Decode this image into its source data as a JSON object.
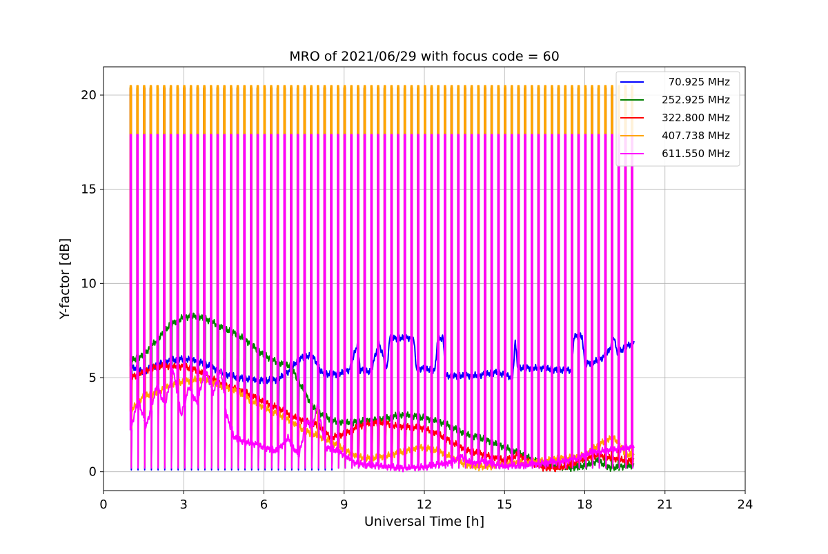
{
  "chart_data": {
    "type": "line",
    "title": "MRO of 2021/06/29 with focus code = 60",
    "xlabel": "Universal Time [h]",
    "ylabel": "Y-factor [dB]",
    "xlim": [
      0,
      24
    ],
    "ylim": [
      -1.0,
      21.5
    ],
    "xticks": [
      0,
      3,
      6,
      9,
      12,
      15,
      18,
      21,
      24
    ],
    "yticks": [
      0,
      5,
      10,
      15,
      20
    ],
    "grid": true,
    "legend_position": "top-right",
    "pulse_times": [
      1.0,
      1.25,
      1.5,
      1.75,
      2.0,
      2.25,
      2.5,
      2.75,
      3.0,
      3.25,
      3.5,
      3.75,
      4.0,
      4.25,
      4.5,
      4.75,
      5.0,
      5.25,
      5.5,
      5.75,
      6.0,
      6.25,
      6.5,
      6.75,
      7.0,
      7.25,
      7.5,
      7.75,
      8.0,
      8.25,
      8.5,
      8.75,
      9.0,
      9.25,
      9.5,
      9.75,
      10.0,
      10.25,
      10.5,
      10.75,
      11.0,
      11.25,
      11.5,
      11.75,
      12.0,
      12.25,
      12.5,
      12.75,
      13.0,
      13.25,
      13.5,
      13.75,
      14.0,
      14.25,
      14.5,
      14.75,
      15.0,
      15.25,
      15.5,
      15.75,
      16.0,
      16.25,
      16.5,
      16.75,
      17.0,
      17.25,
      17.5,
      17.75,
      18.0,
      18.25,
      18.5,
      18.75,
      19.0,
      19.25,
      19.5,
      19.75
    ],
    "series": [
      {
        "name": "70.925 MHz",
        "color": "#0000ff",
        "pulse_peak": 6.0,
        "pulse_base": 0.1,
        "pulse_until": 8.6,
        "baseline": [
          [
            1.0,
            5.6
          ],
          [
            1.5,
            5.3
          ],
          [
            2.0,
            5.7
          ],
          [
            2.5,
            5.9
          ],
          [
            3.0,
            6.0
          ],
          [
            3.5,
            5.9
          ],
          [
            4.0,
            5.6
          ],
          [
            4.5,
            5.2
          ],
          [
            5.0,
            5.0
          ],
          [
            5.5,
            4.9
          ],
          [
            6.0,
            4.85
          ],
          [
            6.5,
            4.9
          ],
          [
            7.0,
            5.4
          ],
          [
            7.3,
            6.0
          ],
          [
            7.8,
            6.2
          ],
          [
            8.2,
            5.2
          ],
          [
            8.8,
            5.2
          ],
          [
            9.2,
            5.4
          ],
          [
            9.5,
            6.8
          ],
          [
            9.6,
            5.4
          ],
          [
            10.0,
            5.3
          ],
          [
            10.3,
            6.9
          ],
          [
            10.6,
            5.4
          ],
          [
            10.7,
            7.1
          ],
          [
            11.6,
            7.1
          ],
          [
            11.7,
            5.5
          ],
          [
            12.4,
            5.4
          ],
          [
            12.5,
            7.1
          ],
          [
            12.7,
            7.1
          ],
          [
            12.8,
            5.1
          ],
          [
            14.0,
            5.1
          ],
          [
            14.7,
            5.3
          ],
          [
            15.3,
            5.0
          ],
          [
            15.4,
            6.9
          ],
          [
            15.5,
            5.5
          ],
          [
            16.0,
            5.5
          ],
          [
            16.5,
            5.5
          ],
          [
            17.0,
            5.4
          ],
          [
            17.5,
            5.4
          ],
          [
            17.6,
            7.2
          ],
          [
            17.9,
            7.2
          ],
          [
            18.0,
            5.7
          ],
          [
            18.5,
            5.9
          ],
          [
            18.7,
            6.1
          ],
          [
            18.9,
            6.4
          ],
          [
            19.1,
            7.2
          ],
          [
            19.2,
            6.3
          ],
          [
            19.5,
            6.6
          ],
          [
            19.85,
            6.9
          ]
        ]
      },
      {
        "name": "252.925 MHz",
        "color": "#008000",
        "pulse_peak": 20.4,
        "pulse_base": 0.2,
        "pulse_until": 19.85,
        "baseline": [
          [
            1.0,
            5.9
          ],
          [
            1.5,
            6.2
          ],
          [
            2.0,
            7.0
          ],
          [
            2.5,
            7.8
          ],
          [
            3.0,
            8.2
          ],
          [
            3.5,
            8.3
          ],
          [
            4.0,
            8.0
          ],
          [
            4.5,
            7.6
          ],
          [
            5.0,
            7.3
          ],
          [
            5.5,
            6.8
          ],
          [
            6.0,
            6.2
          ],
          [
            6.5,
            5.8
          ],
          [
            7.0,
            5.6
          ],
          [
            7.3,
            4.8
          ],
          [
            7.8,
            3.5
          ],
          [
            8.2,
            3.0
          ],
          [
            8.6,
            2.7
          ],
          [
            9.0,
            2.6
          ],
          [
            9.5,
            2.65
          ],
          [
            10.0,
            2.75
          ],
          [
            10.5,
            2.8
          ],
          [
            11.0,
            3.0
          ],
          [
            11.5,
            3.0
          ],
          [
            12.0,
            2.85
          ],
          [
            12.5,
            2.7
          ],
          [
            13.0,
            2.4
          ],
          [
            13.5,
            2.0
          ],
          [
            14.0,
            1.85
          ],
          [
            14.5,
            1.6
          ],
          [
            15.0,
            1.3
          ],
          [
            15.5,
            1.0
          ],
          [
            16.0,
            0.7
          ],
          [
            16.5,
            0.4
          ],
          [
            17.0,
            0.3
          ],
          [
            17.5,
            0.2
          ],
          [
            18.0,
            0.3
          ],
          [
            18.5,
            0.6
          ],
          [
            18.8,
            0.3
          ],
          [
            19.0,
            0.2
          ],
          [
            19.5,
            0.3
          ],
          [
            19.85,
            0.35
          ]
        ]
      },
      {
        "name": "322.800 MHz",
        "color": "#ff0000",
        "pulse_peak": 20.35,
        "pulse_base": 0.3,
        "pulse_until": 19.85,
        "baseline": [
          [
            1.0,
            5.0
          ],
          [
            1.5,
            5.3
          ],
          [
            2.0,
            5.6
          ],
          [
            2.5,
            5.6
          ],
          [
            3.0,
            5.6
          ],
          [
            3.5,
            5.4
          ],
          [
            4.0,
            5.0
          ],
          [
            4.5,
            4.6
          ],
          [
            5.0,
            4.4
          ],
          [
            5.5,
            4.1
          ],
          [
            6.0,
            3.7
          ],
          [
            6.5,
            3.4
          ],
          [
            7.0,
            3.0
          ],
          [
            7.5,
            2.7
          ],
          [
            8.0,
            2.5
          ],
          [
            8.5,
            1.8
          ],
          [
            9.0,
            2.0
          ],
          [
            9.5,
            2.4
          ],
          [
            10.0,
            2.6
          ],
          [
            10.5,
            2.6
          ],
          [
            11.0,
            2.4
          ],
          [
            11.5,
            2.4
          ],
          [
            12.0,
            2.3
          ],
          [
            12.5,
            2.0
          ],
          [
            13.0,
            1.6
          ],
          [
            13.5,
            1.2
          ],
          [
            14.0,
            1.0
          ],
          [
            14.5,
            0.8
          ],
          [
            15.0,
            0.6
          ],
          [
            15.5,
            0.9
          ],
          [
            16.0,
            0.5
          ],
          [
            16.5,
            0.2
          ],
          [
            17.0,
            0.15
          ],
          [
            17.5,
            0.4
          ],
          [
            18.0,
            0.7
          ],
          [
            18.5,
            0.9
          ],
          [
            19.0,
            0.7
          ],
          [
            19.5,
            0.6
          ],
          [
            19.85,
            0.55
          ]
        ]
      },
      {
        "name": "407.738 MHz",
        "color": "#ffa500",
        "pulse_peak": 20.5,
        "pulse_base": 0.3,
        "pulse_until": 19.85,
        "baseline": [
          [
            1.0,
            3.2
          ],
          [
            1.5,
            4.0
          ],
          [
            2.0,
            4.2
          ],
          [
            2.5,
            4.6
          ],
          [
            3.0,
            4.8
          ],
          [
            3.5,
            4.9
          ],
          [
            4.0,
            4.8
          ],
          [
            4.5,
            4.5
          ],
          [
            5.0,
            4.3
          ],
          [
            5.5,
            3.8
          ],
          [
            6.0,
            3.4
          ],
          [
            6.5,
            3.1
          ],
          [
            7.0,
            2.7
          ],
          [
            7.5,
            2.2
          ],
          [
            8.0,
            1.9
          ],
          [
            8.5,
            1.6
          ],
          [
            9.0,
            1.2
          ],
          [
            9.5,
            0.8
          ],
          [
            10.0,
            0.7
          ],
          [
            10.5,
            0.8
          ],
          [
            11.0,
            1.0
          ],
          [
            11.5,
            1.2
          ],
          [
            12.0,
            1.3
          ],
          [
            12.5,
            1.1
          ],
          [
            13.0,
            0.8
          ],
          [
            13.5,
            0.4
          ],
          [
            14.0,
            0.25
          ],
          [
            14.5,
            0.3
          ],
          [
            15.0,
            0.4
          ],
          [
            15.5,
            0.5
          ],
          [
            16.0,
            0.5
          ],
          [
            16.5,
            0.6
          ],
          [
            17.0,
            0.7
          ],
          [
            17.5,
            0.75
          ],
          [
            18.0,
            0.9
          ],
          [
            18.5,
            1.4
          ],
          [
            18.8,
            1.7
          ],
          [
            19.1,
            1.8
          ],
          [
            19.5,
            1.0
          ],
          [
            19.85,
            0.8
          ]
        ]
      },
      {
        "name": "611.550 MHz",
        "color": "#ff00ff",
        "pulse_peak": 17.9,
        "pulse_base": 0.2,
        "pulse_until": 19.85,
        "baseline": [
          [
            1.0,
            2.2
          ],
          [
            1.3,
            3.8
          ],
          [
            1.6,
            2.4
          ],
          [
            2.0,
            4.6
          ],
          [
            2.3,
            3.5
          ],
          [
            2.6,
            5.5
          ],
          [
            2.9,
            3.0
          ],
          [
            3.2,
            4.5
          ],
          [
            3.5,
            3.6
          ],
          [
            3.8,
            5.5
          ],
          [
            4.1,
            4.2
          ],
          [
            4.4,
            5.4
          ],
          [
            4.6,
            3.0
          ],
          [
            4.9,
            1.8
          ],
          [
            5.2,
            1.6
          ],
          [
            5.6,
            1.5
          ],
          [
            6.0,
            1.3
          ],
          [
            6.5,
            1.1
          ],
          [
            6.9,
            1.8
          ],
          [
            7.3,
            0.8
          ],
          [
            7.6,
            2.7
          ],
          [
            7.8,
            2.3
          ],
          [
            8.0,
            3.5
          ],
          [
            8.3,
            1.3
          ],
          [
            8.6,
            1.2
          ],
          [
            9.0,
            0.9
          ],
          [
            9.4,
            0.45
          ],
          [
            10.0,
            0.35
          ],
          [
            10.5,
            0.3
          ],
          [
            11.0,
            0.2
          ],
          [
            11.5,
            0.2
          ],
          [
            12.0,
            0.25
          ],
          [
            12.5,
            0.4
          ],
          [
            13.0,
            0.5
          ],
          [
            13.4,
            0.8
          ],
          [
            13.8,
            0.4
          ],
          [
            14.2,
            0.6
          ],
          [
            14.7,
            0.35
          ],
          [
            15.2,
            0.3
          ],
          [
            15.7,
            0.35
          ],
          [
            16.2,
            0.4
          ],
          [
            16.7,
            0.5
          ],
          [
            17.2,
            0.55
          ],
          [
            17.7,
            0.7
          ],
          [
            18.2,
            1.0
          ],
          [
            18.7,
            1.1
          ],
          [
            19.2,
            1.2
          ],
          [
            19.85,
            1.3
          ]
        ]
      }
    ]
  }
}
